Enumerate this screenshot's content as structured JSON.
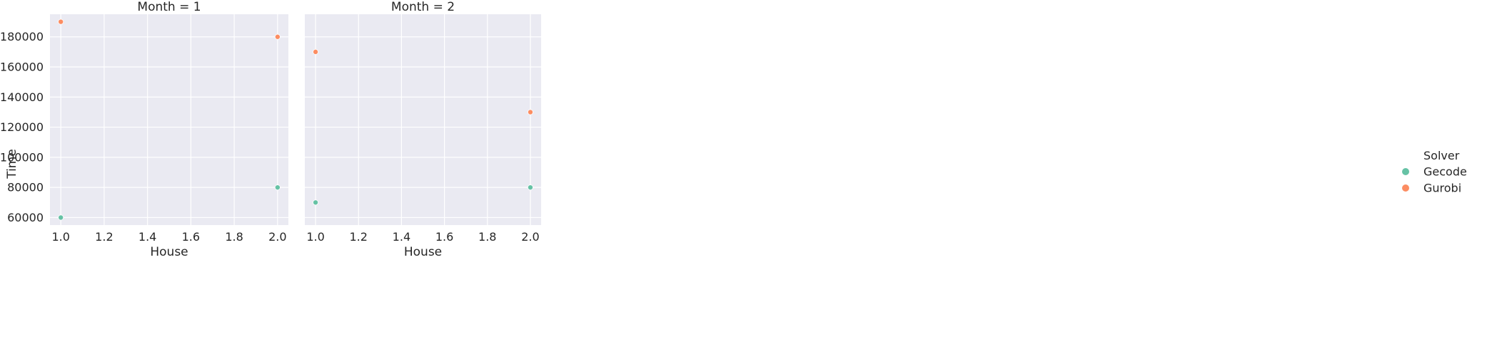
{
  "chart_data": {
    "type": "scatter",
    "facet_variable": "Month",
    "facets": [
      {
        "title": "Month = 1",
        "points": [
          {
            "series": "Gecode",
            "x": 1.0,
            "y": 60000
          },
          {
            "series": "Gecode",
            "x": 2.0,
            "y": 80000
          },
          {
            "series": "Gurobi",
            "x": 1.0,
            "y": 190000
          },
          {
            "series": "Gurobi",
            "x": 2.0,
            "y": 180000
          }
        ]
      },
      {
        "title": "Month = 2",
        "points": [
          {
            "series": "Gecode",
            "x": 1.0,
            "y": 70000
          },
          {
            "series": "Gecode",
            "x": 2.0,
            "y": 80000
          },
          {
            "series": "Gurobi",
            "x": 1.0,
            "y": 170000
          },
          {
            "series": "Gurobi",
            "x": 2.0,
            "y": 130000
          }
        ]
      }
    ],
    "xlabel": "House",
    "ylabel": "Time",
    "xlim": [
      0.95,
      2.05
    ],
    "ylim": [
      55000,
      195000
    ],
    "xticks": [
      1.0,
      1.2,
      1.4,
      1.6,
      1.8,
      2.0
    ],
    "xtick_labels": [
      "1.0",
      "1.2",
      "1.4",
      "1.6",
      "1.8",
      "2.0"
    ],
    "yticks": [
      60000,
      80000,
      100000,
      120000,
      140000,
      160000,
      180000
    ],
    "ytick_labels": [
      "60000",
      "80000",
      "100000",
      "120000",
      "140000",
      "160000",
      "180000"
    ],
    "grid": true,
    "legend": {
      "title": "Solver",
      "placement": "right",
      "entries": [
        {
          "name": "Gecode",
          "color": "#66c2a5"
        },
        {
          "name": "Gurobi",
          "color": "#fc8d62"
        }
      ]
    },
    "colors": {
      "panel_background": "#eaeaf2",
      "grid": "#ffffff"
    }
  }
}
